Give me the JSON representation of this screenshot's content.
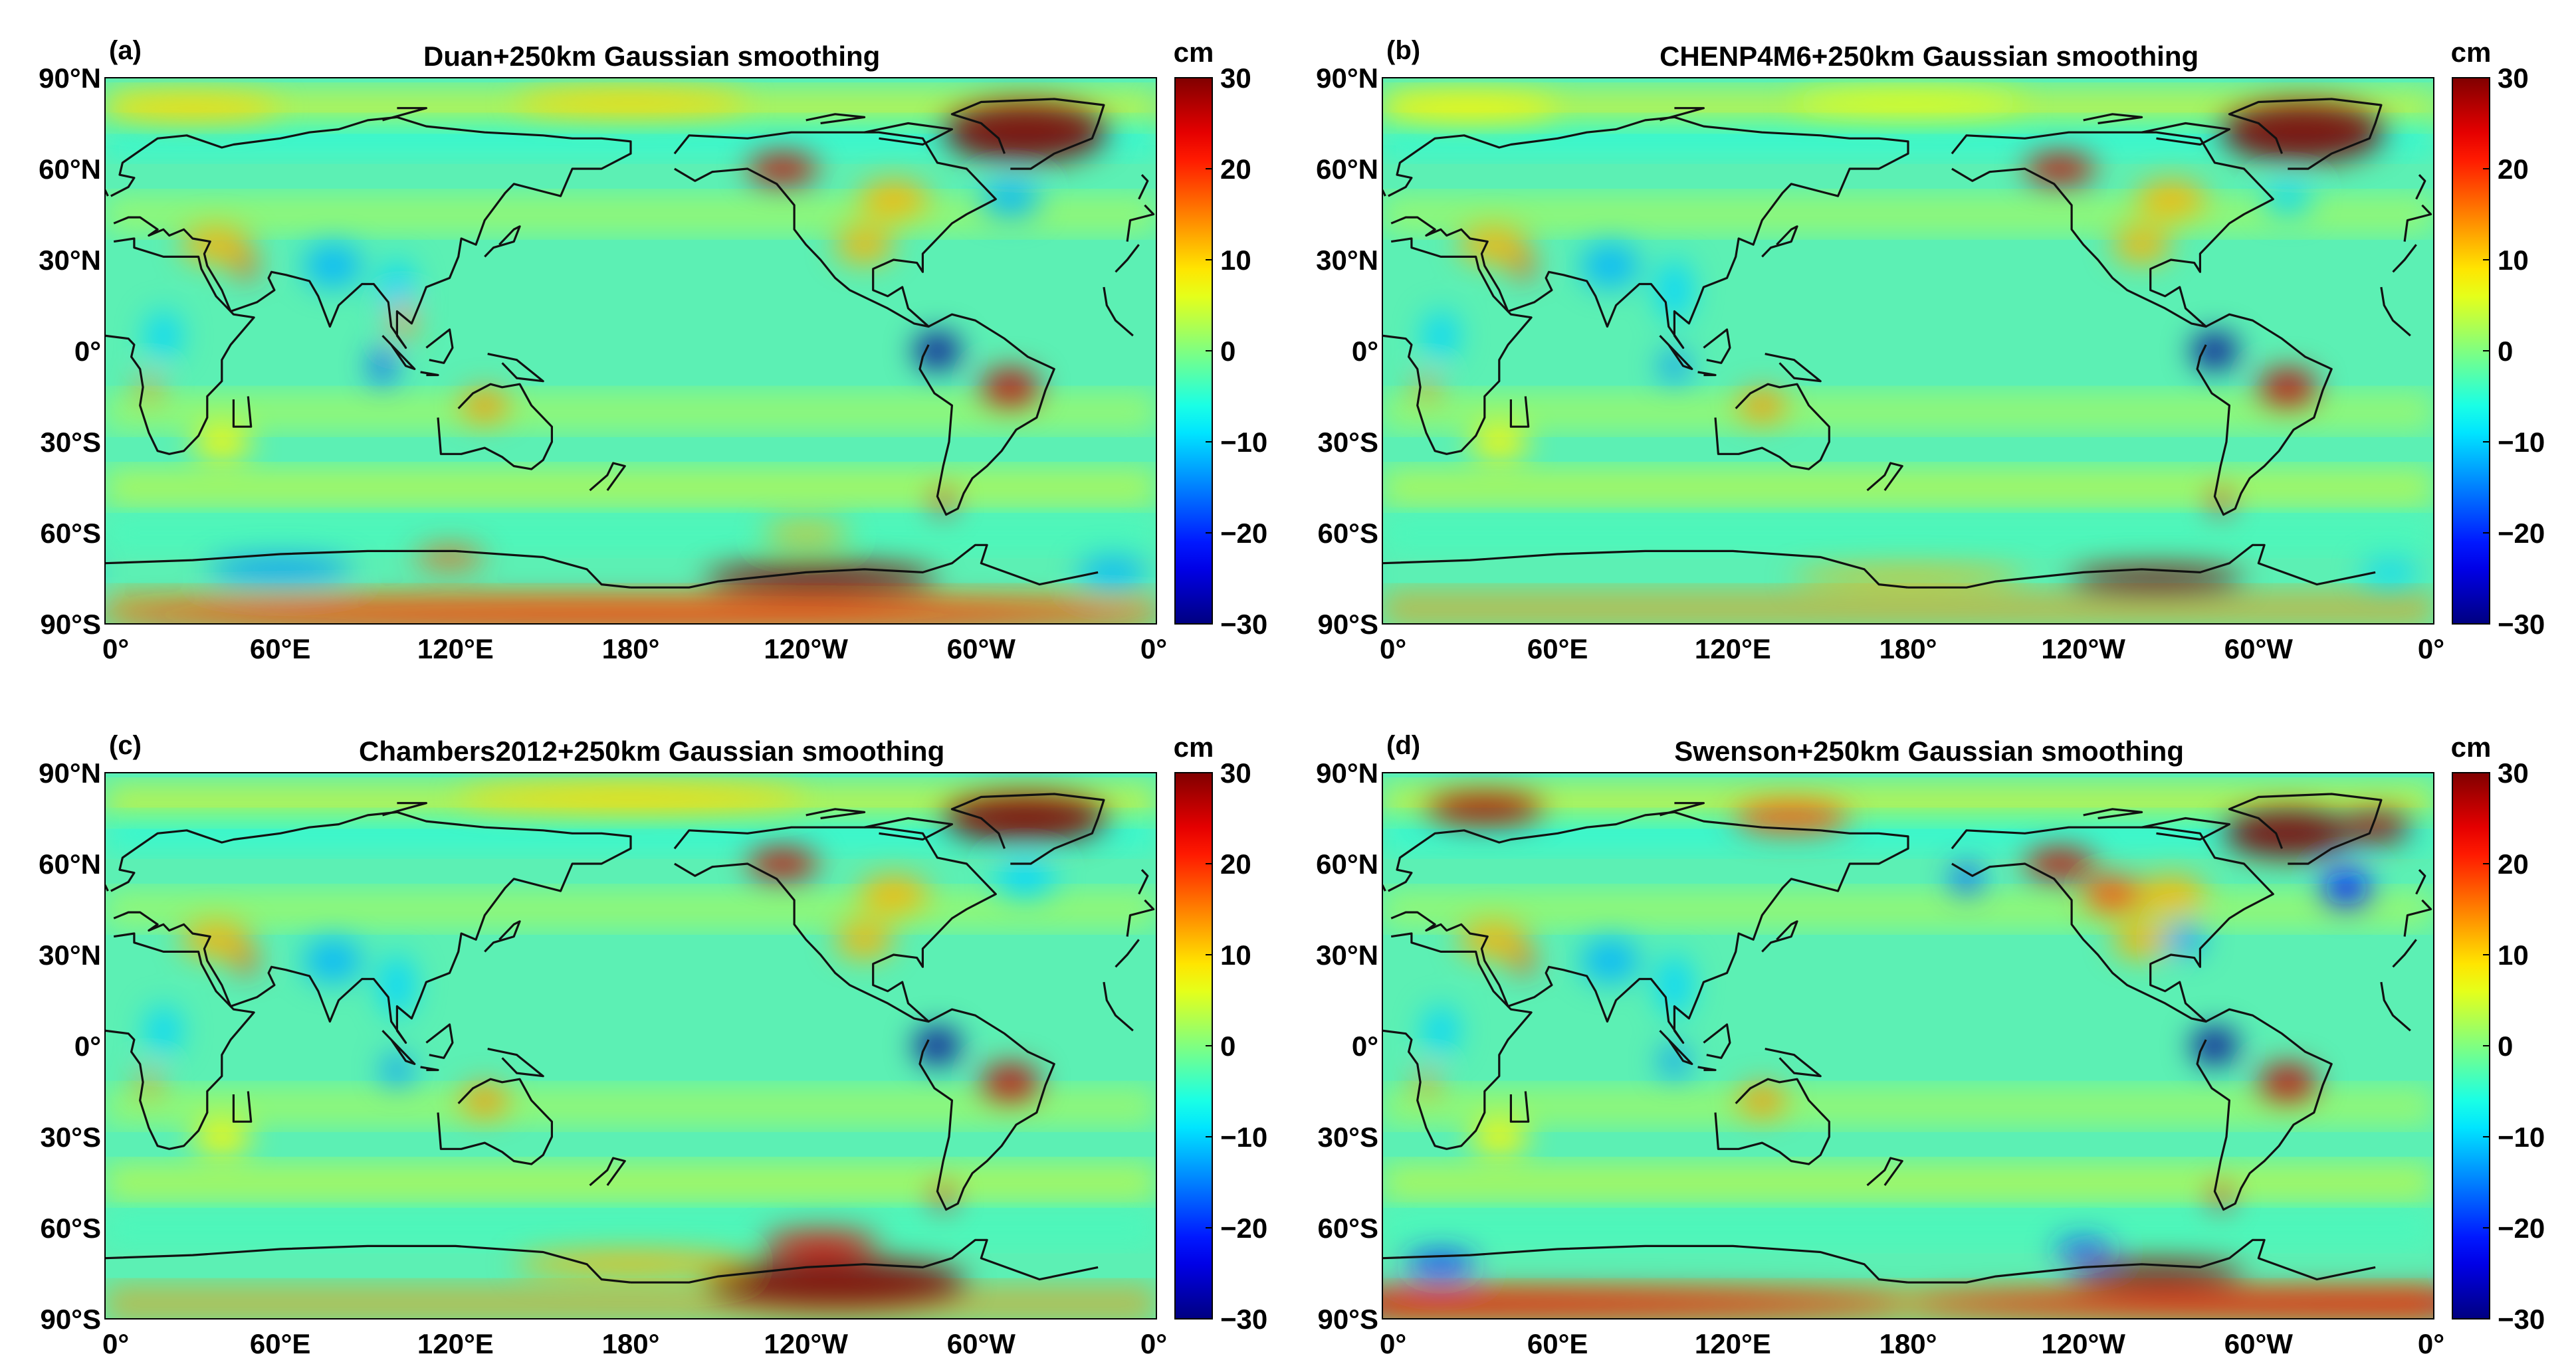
{
  "figure": {
    "panels": [
      {
        "letter": "(a)",
        "title": "Duan+250km Gaussian smoothing",
        "variant": 0
      },
      {
        "letter": "(b)",
        "title": "CHENP4M6+250km Gaussian smoothing",
        "variant": 1
      },
      {
        "letter": "(c)",
        "title": "Chambers2012+250km Gaussian smoothing",
        "variant": 2
      },
      {
        "letter": "(d)",
        "title": "Swenson+250km Gaussian smoothing",
        "variant": 3
      }
    ],
    "lat_labels": [
      "90°N",
      "60°N",
      "30°N",
      "0°",
      "30°S",
      "60°S",
      "90°S"
    ],
    "lon_labels": [
      "0°",
      "60°E",
      "120°E",
      "180°",
      "120°W",
      "60°W",
      "0°"
    ],
    "colorbar": {
      "unit": "cm",
      "ticks": [
        "30",
        "20",
        "10",
        "0",
        "−10",
        "−20",
        "−30"
      ],
      "range": [
        -30,
        30
      ],
      "colormap": "jet",
      "colors": [
        "#00007f",
        "#0000ff",
        "#007fff",
        "#00ffff",
        "#7fff7f",
        "#ffff00",
        "#ff7f00",
        "#ff0000",
        "#7f0000"
      ]
    },
    "map_colors": {
      "background": "#5cf0b4",
      "coastline": "#111111"
    }
  }
}
